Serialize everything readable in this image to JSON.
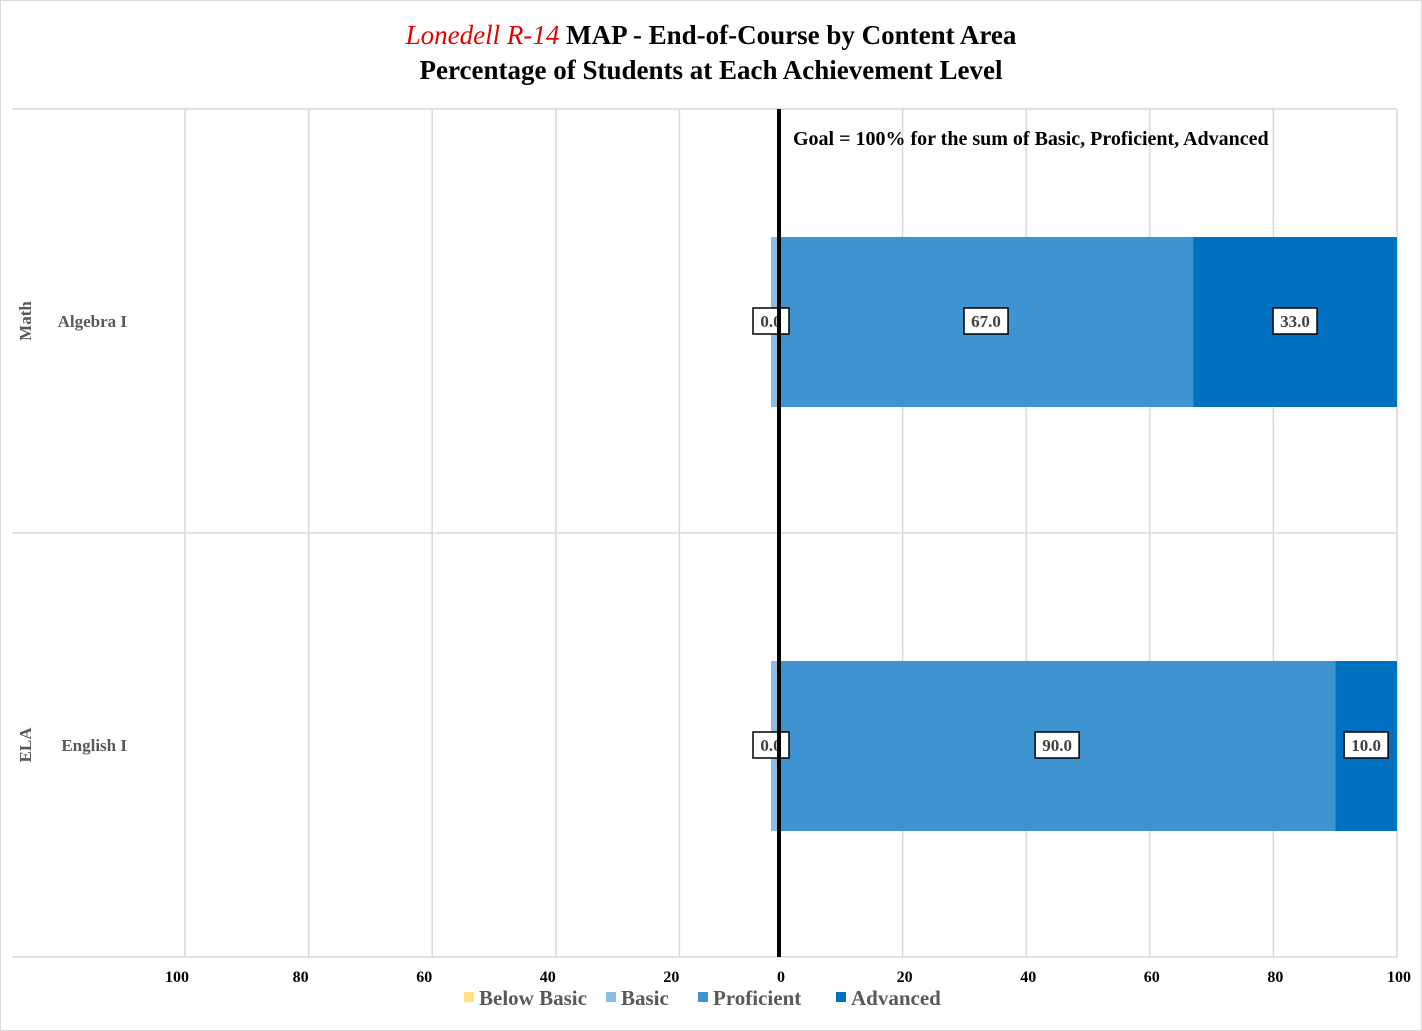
{
  "title": {
    "district": "Lonedell R-14",
    "line1_rest": " MAP - End-of-Course by Content Area",
    "line2": "Percentage of Students at Each Achievement Level"
  },
  "annotation": "Goal = 100% for the sum of Basic, Proficient, Advanced",
  "legend": [
    {
      "name": "Below Basic",
      "color": "#ffe083"
    },
    {
      "name": "Basic",
      "color": "#8ebce0"
    },
    {
      "name": "Proficient",
      "color": "#3e94d1"
    },
    {
      "name": "Advanced",
      "color": "#0070c0"
    }
  ],
  "chart_data": {
    "type": "bar",
    "orientation": "horizontal",
    "stacked": "diverging",
    "title": "Lonedell R-14 MAP - End-of-Course by Content Area",
    "subtitle": "Percentage of Students at Each Achievement Level",
    "x_ticks": [
      "100",
      "80",
      "60",
      "40",
      "20",
      "0",
      "20",
      "40",
      "60",
      "80",
      "100"
    ],
    "xlim": [
      -100,
      100
    ],
    "grid": true,
    "legend_position": "bottom",
    "groups": [
      {
        "group": "Math",
        "category": "Algebra I"
      },
      {
        "group": "ELA",
        "category": "English I"
      }
    ],
    "series": [
      {
        "name": "Below Basic",
        "values": [
          0,
          0
        ],
        "side": "left",
        "color": "#ffe083"
      },
      {
        "name": "Basic",
        "values": [
          0.0,
          0.0
        ],
        "side": "right",
        "color": "#8ebce0",
        "labels": [
          "0.0",
          "0.0"
        ]
      },
      {
        "name": "Proficient",
        "values": [
          67.0,
          90.0
        ],
        "side": "right",
        "color": "#3e94d1",
        "labels": [
          "67.0",
          "90.0"
        ]
      },
      {
        "name": "Advanced",
        "values": [
          33.0,
          10.0
        ],
        "side": "right",
        "color": "#0070c0",
        "labels": [
          "33.0",
          "10.0"
        ]
      }
    ]
  }
}
